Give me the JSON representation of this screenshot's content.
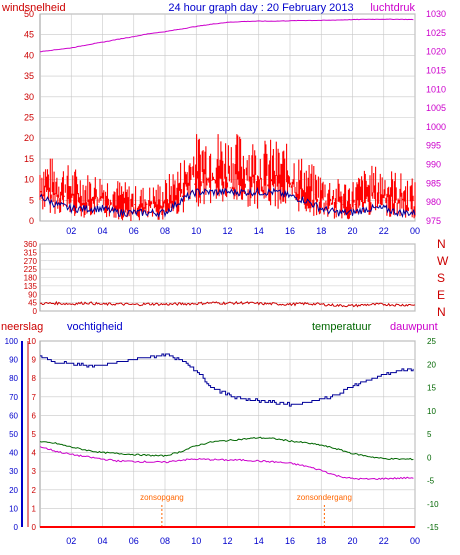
{
  "title": "24 hour graph day : 20 February 2013",
  "colors": {
    "wind": "#ff0000",
    "gust": "#ff0000",
    "wind_avg": "#000099",
    "pressure": "#cc00cc",
    "direction": "#cc0000",
    "humidity": "#000099",
    "temperature": "#006600",
    "dewpoint": "#cc00cc",
    "rain": "#ff0000",
    "sun": "#ff6600",
    "axis_red": "#cc0000",
    "axis_magenta": "#cc00cc",
    "axis_blue": "#0000cc",
    "axis_green": "#006600",
    "grid": "#c8c8c8"
  },
  "chart_data": [
    {
      "type": "line",
      "panel": "wind_pressure",
      "left_label": "windsnelheid",
      "right_label": "luchtdruk",
      "x_ticks": [
        "02",
        "04",
        "06",
        "08",
        "10",
        "12",
        "14",
        "16",
        "18",
        "20",
        "22",
        "00"
      ],
      "ylim_left": [
        0,
        50
      ],
      "yticks_left": [
        "0",
        "5",
        "10",
        "15",
        "20",
        "25",
        "30",
        "35",
        "40",
        "45",
        "50"
      ],
      "ylim_right": [
        975,
        1030
      ],
      "yticks_right": [
        "975",
        "980",
        "985",
        "990",
        "995",
        "1000",
        "1005",
        "1010",
        "1015",
        "1020",
        "1025",
        "1030"
      ],
      "grid": true,
      "series": [
        {
          "role": "wind_avg",
          "x": [
            0,
            1,
            2,
            3,
            4,
            5,
            6,
            7,
            8,
            9,
            10,
            11,
            12,
            13,
            14,
            15,
            16,
            17,
            18,
            19,
            20,
            21,
            22,
            23,
            24
          ],
          "values": [
            6,
            4,
            3,
            3,
            3,
            2,
            2,
            2,
            2,
            5,
            7,
            7,
            7,
            7,
            7,
            7,
            6,
            5,
            3,
            2,
            2,
            3,
            3,
            2,
            2
          ]
        },
        {
          "role": "wind_gust_mid",
          "x": [
            0,
            1,
            2,
            3,
            4,
            5,
            6,
            7,
            8,
            9,
            10,
            11,
            12,
            13,
            14,
            15,
            16,
            17,
            18,
            19,
            20,
            21,
            22,
            23,
            24
          ],
          "values": [
            9,
            8,
            7,
            6,
            6,
            5,
            4,
            4,
            5,
            8,
            12,
            13,
            12,
            12,
            11,
            11,
            10,
            8,
            6,
            5,
            5,
            7,
            7,
            6,
            5
          ]
        },
        {
          "role": "pressure",
          "x": [
            0,
            1,
            2,
            3,
            4,
            5,
            6,
            7,
            8,
            9,
            10,
            11,
            12,
            13,
            14,
            15,
            16,
            17,
            18,
            19,
            20,
            21,
            22,
            23,
            24
          ],
          "values": [
            1020,
            1020.5,
            1021,
            1021.8,
            1022.5,
            1023.3,
            1024,
            1024.8,
            1025.3,
            1026,
            1026.7,
            1027.3,
            1027.8,
            1028,
            1028.1,
            1028.1,
            1028.2,
            1028.3,
            1028.3,
            1028.4,
            1028.5,
            1028.6,
            1028.6,
            1028.6,
            1028.5
          ]
        }
      ]
    },
    {
      "type": "line",
      "panel": "wind_direction",
      "ylim": [
        0,
        360
      ],
      "yticks": [
        "0",
        "45",
        "90",
        "135",
        "180",
        "225",
        "270",
        "315",
        "360"
      ],
      "compass": [
        "N",
        "W",
        "S",
        "E",
        "N"
      ],
      "grid": true,
      "series": [
        {
          "role": "direction",
          "x": [
            0,
            1,
            2,
            3,
            4,
            5,
            6,
            7,
            8,
            9,
            10,
            11,
            12,
            13,
            14,
            15,
            16,
            17,
            18,
            19,
            20,
            21,
            22,
            23,
            24
          ],
          "values": [
            40,
            42,
            38,
            44,
            36,
            38,
            34,
            38,
            36,
            38,
            40,
            44,
            42,
            44,
            40,
            38,
            36,
            40,
            36,
            30,
            28,
            34,
            36,
            32,
            34
          ]
        }
      ]
    },
    {
      "type": "line",
      "panel": "temp_humidity",
      "labels": [
        "neerslag",
        "vochtigheid",
        "temperatuur",
        "dauwpunt"
      ],
      "x_ticks": [
        "02",
        "04",
        "06",
        "08",
        "10",
        "12",
        "14",
        "16",
        "18",
        "20",
        "22",
        "00"
      ],
      "ylim_rain": [
        0,
        10
      ],
      "yticks_rain": [
        "0",
        "1",
        "2",
        "3",
        "4",
        "5",
        "6",
        "7",
        "8",
        "9",
        "10"
      ],
      "ylim_humidity": [
        0,
        100
      ],
      "yticks_humidity": [
        "0",
        "10",
        "20",
        "30",
        "40",
        "50",
        "60",
        "70",
        "80",
        "90",
        "100"
      ],
      "ylim_temp": [
        -15,
        25
      ],
      "yticks_temp": [
        "-15",
        "-10",
        "-5",
        "0",
        "5",
        "10",
        "15",
        "20",
        "25"
      ],
      "grid": true,
      "annotations": [
        {
          "text": "zonsopgang",
          "x": 7.8
        },
        {
          "text": "zonsondergang",
          "x": 18.2
        }
      ],
      "series": [
        {
          "role": "humidity",
          "x": [
            0,
            1,
            2,
            3,
            4,
            5,
            6,
            7,
            8,
            9,
            10,
            11,
            12,
            13,
            14,
            15,
            16,
            17,
            18,
            19,
            20,
            21,
            22,
            23,
            24
          ],
          "values": [
            92,
            88,
            88,
            87,
            87,
            89,
            90,
            91,
            93,
            90,
            84,
            75,
            71,
            69,
            68,
            67,
            66,
            67,
            69,
            71,
            76,
            79,
            82,
            84,
            85
          ]
        },
        {
          "role": "temperature",
          "x": [
            0,
            1,
            2,
            3,
            4,
            5,
            6,
            7,
            8,
            9,
            10,
            11,
            12,
            13,
            14,
            15,
            16,
            17,
            18,
            19,
            20,
            21,
            22,
            23,
            24
          ],
          "values": [
            3.3,
            3,
            2.2,
            1.5,
            1,
            0.8,
            0.6,
            0.4,
            0.3,
            1.2,
            2.5,
            3.3,
            3.6,
            3.9,
            4.2,
            4.0,
            3.5,
            3.1,
            2.6,
            1.8,
            0.8,
            0.2,
            -0.3,
            -0.4,
            -0.4
          ]
        },
        {
          "role": "dewpoint",
          "x": [
            0,
            1,
            2,
            3,
            4,
            5,
            6,
            7,
            8,
            9,
            10,
            11,
            12,
            13,
            14,
            15,
            16,
            17,
            18,
            19,
            20,
            21,
            22,
            23,
            24
          ],
          "values": [
            2.3,
            1.3,
            0.6,
            0.1,
            -0.4,
            -0.8,
            -0.9,
            -1.0,
            -1.1,
            -0.6,
            -0.4,
            -0.5,
            -0.6,
            -0.6,
            -0.8,
            -1.0,
            -1.3,
            -1.9,
            -2.8,
            -4.0,
            -4.6,
            -4.7,
            -4.6,
            -4.5,
            -4.4
          ]
        },
        {
          "role": "rain",
          "x": [
            0,
            24
          ],
          "values": [
            0,
            0
          ]
        }
      ]
    }
  ]
}
